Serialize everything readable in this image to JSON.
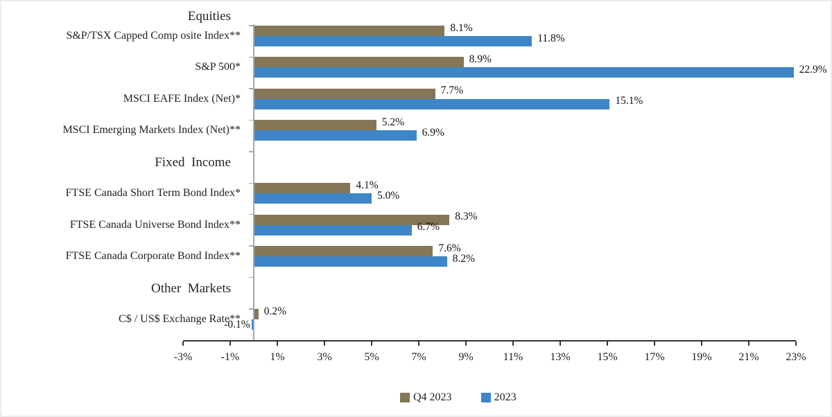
{
  "chart_data": {
    "type": "bar",
    "orientation": "horizontal",
    "series": [
      {
        "name": "Q4 2023",
        "color": "#847656"
      },
      {
        "name": "2023",
        "color": "#3E86C7"
      }
    ],
    "rows": [
      {
        "kind": "section",
        "label": "Equities"
      },
      {
        "kind": "item",
        "label": "S&P/TSX Capped Comp osite Index**",
        "values": [
          8.1,
          11.8
        ],
        "value_labels": [
          "8.1%",
          "11.8%"
        ]
      },
      {
        "kind": "item",
        "label": "S&P 500*",
        "values": [
          8.9,
          22.9
        ],
        "value_labels": [
          "8.9%",
          "22.9%"
        ]
      },
      {
        "kind": "item",
        "label": "MSCI EAFE Index (Net)*",
        "values": [
          7.7,
          15.1
        ],
        "value_labels": [
          "7.7%",
          "15.1%"
        ]
      },
      {
        "kind": "item",
        "label": "MSCI Emerging Markets Index (Net)**",
        "values": [
          5.2,
          6.9
        ],
        "value_labels": [
          "5.2%",
          "6.9%"
        ]
      },
      {
        "kind": "section",
        "label": "Fixed  Income"
      },
      {
        "kind": "item",
        "label": "FTSE Canada Short Term Bond Index*",
        "values": [
          4.1,
          5.0
        ],
        "value_labels": [
          "4.1%",
          "5.0%"
        ]
      },
      {
        "kind": "item",
        "label": "FTSE Canada Universe Bond Index**",
        "values": [
          8.3,
          6.7
        ],
        "value_labels": [
          "8.3%",
          "6.7%"
        ]
      },
      {
        "kind": "item",
        "label": "FTSE Canada Corporate Bond Index**",
        "values": [
          7.6,
          8.2
        ],
        "value_labels": [
          "7.6%",
          "8.2%"
        ]
      },
      {
        "kind": "section",
        "label": "Other  Markets"
      },
      {
        "kind": "item",
        "label": "C$ / US$ Exchange Rate**",
        "values": [
          0.2,
          -0.1
        ],
        "value_labels": [
          "0.2%",
          "-0.1%"
        ]
      }
    ],
    "x_axis": {
      "min": -3,
      "max": 23,
      "step": 2,
      "unit": "%",
      "tick_labels": [
        "-3%",
        "-1%",
        "1%",
        "3%",
        "5%",
        "7%",
        "9%",
        "11%",
        "13%",
        "15%",
        "17%",
        "19%",
        "21%",
        "23%"
      ]
    },
    "legend": {
      "position": "bottom",
      "entries": [
        "Q4 2023",
        "2023"
      ]
    },
    "grid": false,
    "plot_background": "#ffffff",
    "value_axis_color": "#333333",
    "category_axis_color": "#a8a8a8"
  }
}
